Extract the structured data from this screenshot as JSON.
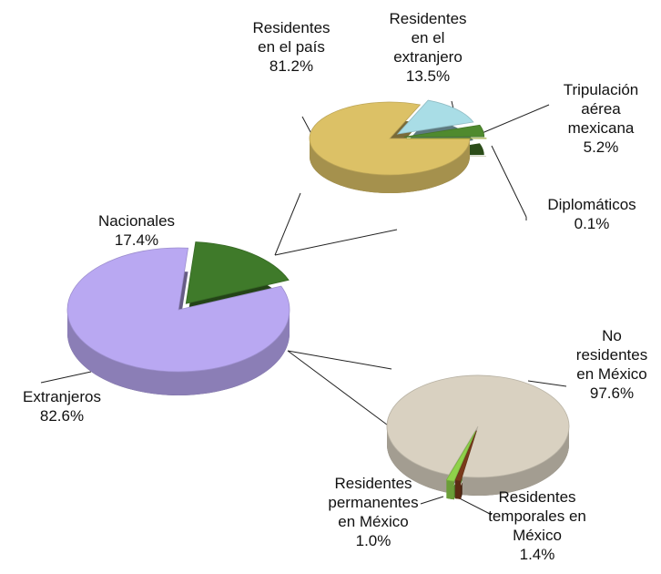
{
  "chart_data": [
    {
      "type": "pie",
      "categories": [
        "Extranjeros",
        "Nacionales"
      ],
      "values": [
        82.6,
        17.4
      ],
      "value_labels": [
        "82.6%",
        "17.4%"
      ],
      "colors": [
        "#b9a8f2",
        "#3f7a2a"
      ]
    },
    {
      "type": "pie",
      "categories": [
        "Residentes en el país",
        "Residentes en el extranjero",
        "Tripulación aérea mexicana",
        "Diplomáticos"
      ],
      "values": [
        81.2,
        13.5,
        5.2,
        0.1
      ],
      "value_labels": [
        "81.2%",
        "13.5%",
        "5.2%",
        "0.1%"
      ],
      "colors": [
        "#dcc166",
        "#a9dde6",
        "#4f8a2e",
        "#a6b820"
      ]
    },
    {
      "type": "pie",
      "categories": [
        "No residentes en México",
        "Residentes permanentes en México",
        "Residentes temporales en México"
      ],
      "values": [
        97.6,
        1.0,
        1.4
      ],
      "value_labels": [
        "97.6%",
        "1.0%",
        "1.4%"
      ],
      "colors": [
        "#d9d1c1",
        "#7a3a1a",
        "#8fd24a"
      ]
    }
  ]
}
